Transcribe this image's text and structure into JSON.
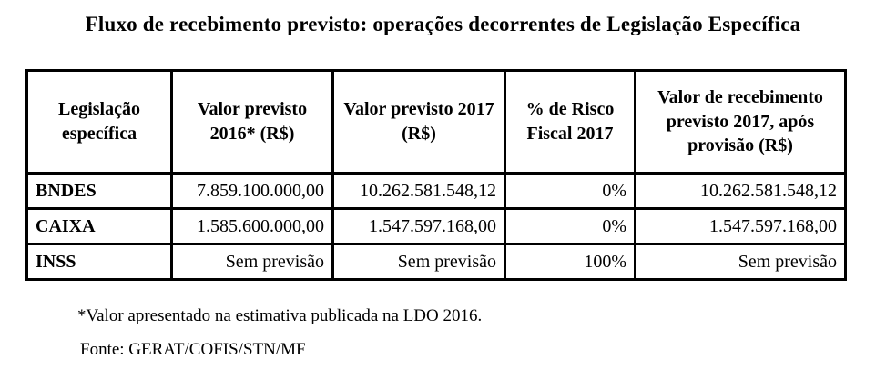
{
  "title": "Fluxo de recebimento previsto: operações decorrentes de Legislação Específica",
  "colors": {
    "text": "#000000",
    "background": "#ffffff",
    "border": "#000000"
  },
  "table": {
    "headers": [
      "Legislação específica",
      "Valor previsto 2016* (R$)",
      "Valor previsto 2017 (R$)",
      "% de Risco Fiscal 2017",
      "Valor de recebimento previsto 2017, após provisão (R$)"
    ],
    "rows": [
      {
        "label": "BNDES",
        "values": [
          "7.859.100.000,00",
          "10.262.581.548,12",
          "0%",
          "10.262.581.548,12"
        ]
      },
      {
        "label": "CAIXA",
        "values": [
          "1.585.600.000,00",
          "1.547.597.168,00",
          "0%",
          "1.547.597.168,00"
        ]
      },
      {
        "label": "INSS",
        "values": [
          "Sem previsão",
          "Sem previsão",
          "100%",
          "Sem previsão"
        ]
      }
    ]
  },
  "footnotes": {
    "asterisk": "*Valor apresentado na estimativa publicada na LDO 2016.",
    "source": "Fonte: GERAT/COFIS/STN/MF"
  }
}
